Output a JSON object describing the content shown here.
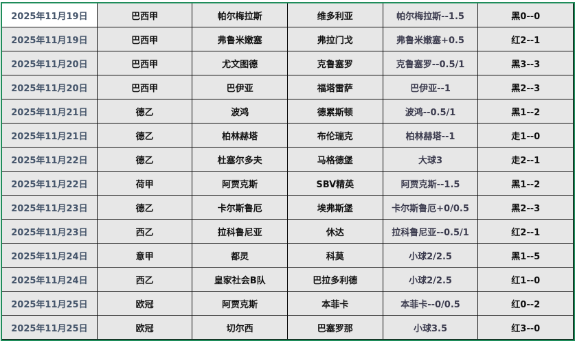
{
  "rows": [
    {
      "date": "2025年11月19日",
      "league": "巴西甲",
      "home": "帕尔梅拉斯",
      "away": "维多利亚",
      "handicap": "帕尔梅拉斯--1.5",
      "result": "黑0--0"
    },
    {
      "date": "2025年11月19日",
      "league": "巴西甲",
      "home": "弗鲁米嫩塞",
      "away": "弗拉门戈",
      "handicap": "弗鲁米嫩塞+0.5",
      "result": "红2--1"
    },
    {
      "date": "2025年11月20日",
      "league": "巴西甲",
      "home": "尤文图德",
      "away": "克鲁塞罗",
      "handicap": "克鲁塞罗--0.5/1",
      "result": "黑3--3"
    },
    {
      "date": "2025年11月20日",
      "league": "巴西甲",
      "home": "巴伊亚",
      "away": "福塔雷萨",
      "handicap": "巴伊亚--1",
      "result": "黑2--3"
    },
    {
      "date": "2025年11月21日",
      "league": "德乙",
      "home": "波鸿",
      "away": "德累斯顿",
      "handicap": "波鸿--0.5/1",
      "result": "黑1--2"
    },
    {
      "date": "2025年11月21日",
      "league": "德乙",
      "home": "柏林赫塔",
      "away": "布伦瑞克",
      "handicap": "柏林赫塔--1",
      "result": "走1--0"
    },
    {
      "date": "2025年11月22日",
      "league": "德乙",
      "home": "杜塞尔多夫",
      "away": "马格德堡",
      "handicap": "大球3",
      "result": "走2--1"
    },
    {
      "date": "2025年11月22日",
      "league": "荷甲",
      "home": "阿贾克斯",
      "away": "SBV精英",
      "handicap": "阿贾克斯--1.5",
      "result": "黑1--2"
    },
    {
      "date": "2025年11月23日",
      "league": "德乙",
      "home": "卡尔斯鲁厄",
      "away": "埃弗斯堡",
      "handicap": "卡尔斯鲁厄+0/0.5",
      "result": "黑2--3"
    },
    {
      "date": "2025年11月23日",
      "league": "西乙",
      "home": "拉科鲁尼亚",
      "away": "休达",
      "handicap": "拉科鲁尼亚--0.5/1",
      "result": "红2--1"
    },
    {
      "date": "2025年11月24日",
      "league": "意甲",
      "home": "都灵",
      "away": "科莫",
      "handicap": "小球2/2.5",
      "result": "黑1--5"
    },
    {
      "date": "2025年11月24日",
      "league": "西乙",
      "home": "皇家社会B队",
      "away": "巴拉多利德",
      "handicap": "小球2/2.5",
      "result": "红1--0"
    },
    {
      "date": "2025年11月25日",
      "league": "欧冠",
      "home": "阿贾克斯",
      "away": "本菲卡",
      "handicap": "本菲卡--0/0.5",
      "result": "红0--2"
    },
    {
      "date": "2025年11月25日",
      "league": "欧冠",
      "home": "切尔西",
      "away": "巴塞罗那",
      "handicap": "小球3.5",
      "result": "红3--0"
    }
  ]
}
